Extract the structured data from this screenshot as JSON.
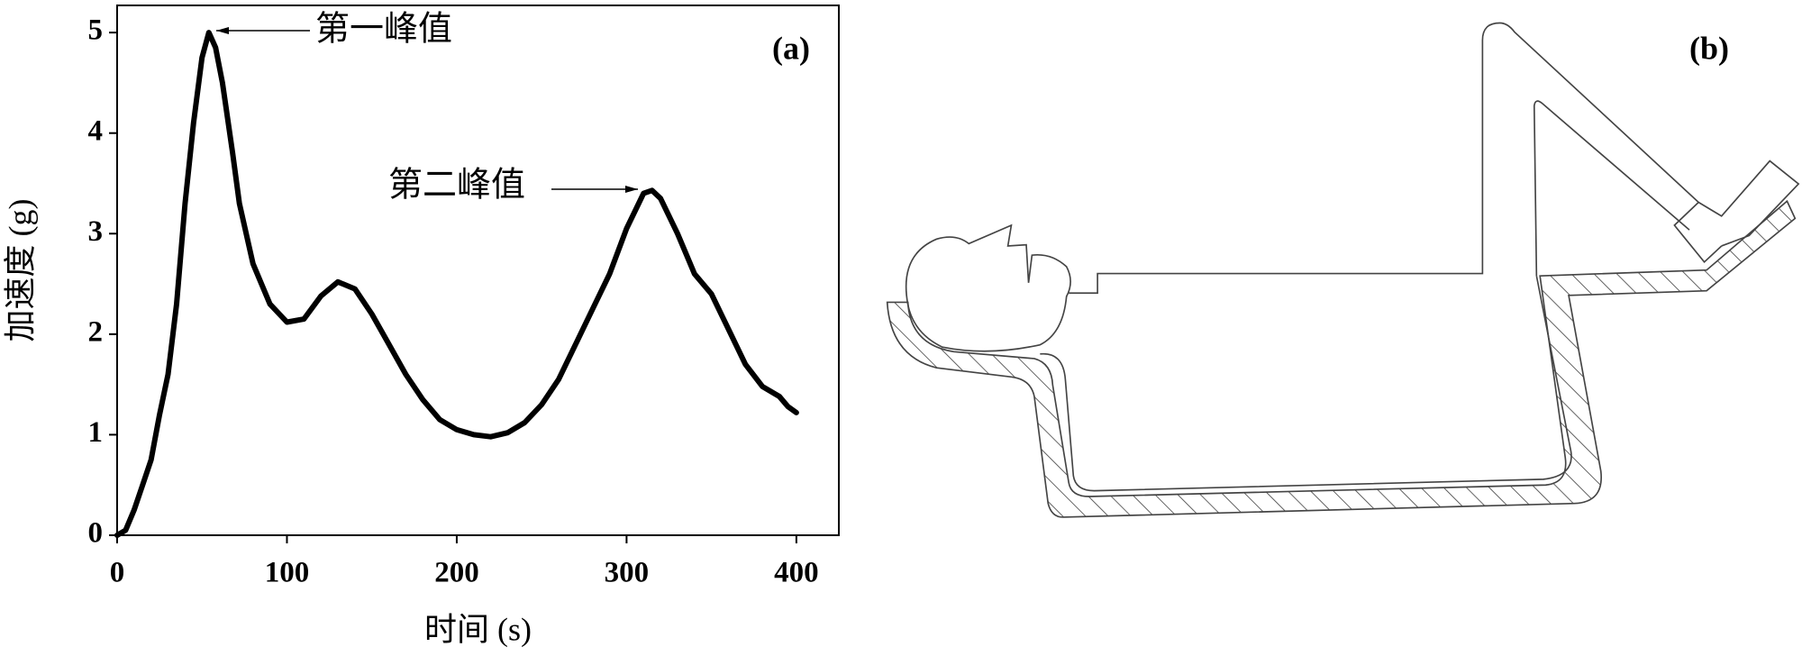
{
  "chart_data": {
    "type": "line",
    "xlabel": "时间 (s)",
    "ylabel": "加速度 (g)",
    "panel_label": "(a)",
    "annotations": [
      "第一峰值",
      "第二峰值"
    ],
    "x": [
      0,
      5,
      10,
      15,
      20,
      25,
      30,
      35,
      40,
      45,
      50,
      54,
      58,
      62,
      68,
      72,
      80,
      90,
      100,
      110,
      120,
      130,
      140,
      150,
      160,
      170,
      180,
      190,
      200,
      210,
      220,
      230,
      240,
      250,
      260,
      270,
      280,
      290,
      300,
      310,
      315,
      320,
      330,
      340,
      350,
      360,
      370,
      380,
      390,
      395,
      400
    ],
    "series": [
      {
        "color": "#000000",
        "values": [
          0,
          0.05,
          0.25,
          0.5,
          0.75,
          1.2,
          1.6,
          2.3,
          3.3,
          4.1,
          4.75,
          5.0,
          4.85,
          4.5,
          3.8,
          3.3,
          2.7,
          2.3,
          2.12,
          2.15,
          2.38,
          2.52,
          2.45,
          2.2,
          1.9,
          1.6,
          1.35,
          1.15,
          1.05,
          1.0,
          0.98,
          1.02,
          1.12,
          1.3,
          1.55,
          1.9,
          2.25,
          2.6,
          3.05,
          3.4,
          3.43,
          3.35,
          3.0,
          2.6,
          2.4,
          2.05,
          1.7,
          1.48,
          1.38,
          1.28,
          1.22
        ]
      }
    ],
    "xlim": [
      0,
      425
    ],
    "xticks": [
      0,
      100,
      200,
      300,
      400
    ],
    "ylim": [
      0,
      5.27
    ],
    "yticks": [
      0,
      1,
      2,
      3,
      4,
      5
    ]
  },
  "diagram": {
    "panel_label": "(b)"
  }
}
